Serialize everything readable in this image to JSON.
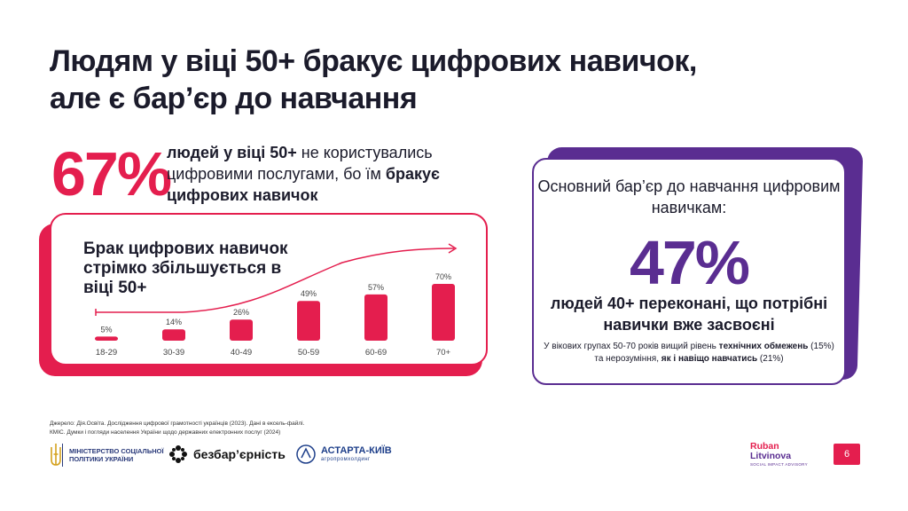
{
  "title": {
    "line1": "Людям у віці 50+ бракує цифрових навичок,",
    "line2": "але є бар’єр до навчання"
  },
  "stat_left": {
    "value": "67%",
    "text_bold1": "людей у віці 50+",
    "text_plain1": " не користувались цифровими послугами, бо їм ",
    "text_bold2": "бракує цифрових навичок"
  },
  "chart_data": {
    "type": "bar",
    "title": "Брак цифрових навичок стрімко збільшується в віці 50+",
    "categories": [
      "18-29",
      "30-39",
      "40-49",
      "50-59",
      "60-69",
      "70+"
    ],
    "values": [
      5,
      14,
      26,
      49,
      57,
      70
    ],
    "data_labels": [
      "5%",
      "14%",
      "26%",
      "49%",
      "57%",
      "70%"
    ],
    "ylim": [
      0,
      70
    ],
    "xlabel": "",
    "ylabel": "",
    "grid": false,
    "trend_arrow": true,
    "bar_color": "#e41e4e"
  },
  "stat_right": {
    "heading": "Основний бар’єр до навчання цифровим навичкам:",
    "value": "47%",
    "text": "людей 40+ переконані, що потрібні навички вже засвоєні",
    "note_p1": "У вікових групах 50-70 років вищий рівень ",
    "note_b1": "технічних обмежень",
    "note_p2": " (15%) та нерозуміння, ",
    "note_b2": "як і навіщо навчатись",
    "note_p3": " (21%)"
  },
  "sources": {
    "line1": "Джерело: Дія.Освіта. Дослідження цифрової грамотності українців (2023). Дані в ексель-файлі.",
    "line2": "КМІС. Думки і погляди населення України щодо державних електронних послуг (2024)"
  },
  "logos": {
    "ministry": "Міністерство соціальної політики України",
    "bezbar": "безбар’єрність",
    "astarta_name": "АСТАРТА-КИЇВ",
    "astarta_sub": "агропромхолдинг",
    "rl_line1": "Ruban",
    "rl_line2": "Litvinova",
    "rl_sub": "SOCIAL IMPACT ADVISORY"
  },
  "page_number": "6",
  "colors": {
    "accent_red": "#e41e4e",
    "accent_purple": "#5a2d91",
    "text_dark": "#1b1b2b"
  }
}
